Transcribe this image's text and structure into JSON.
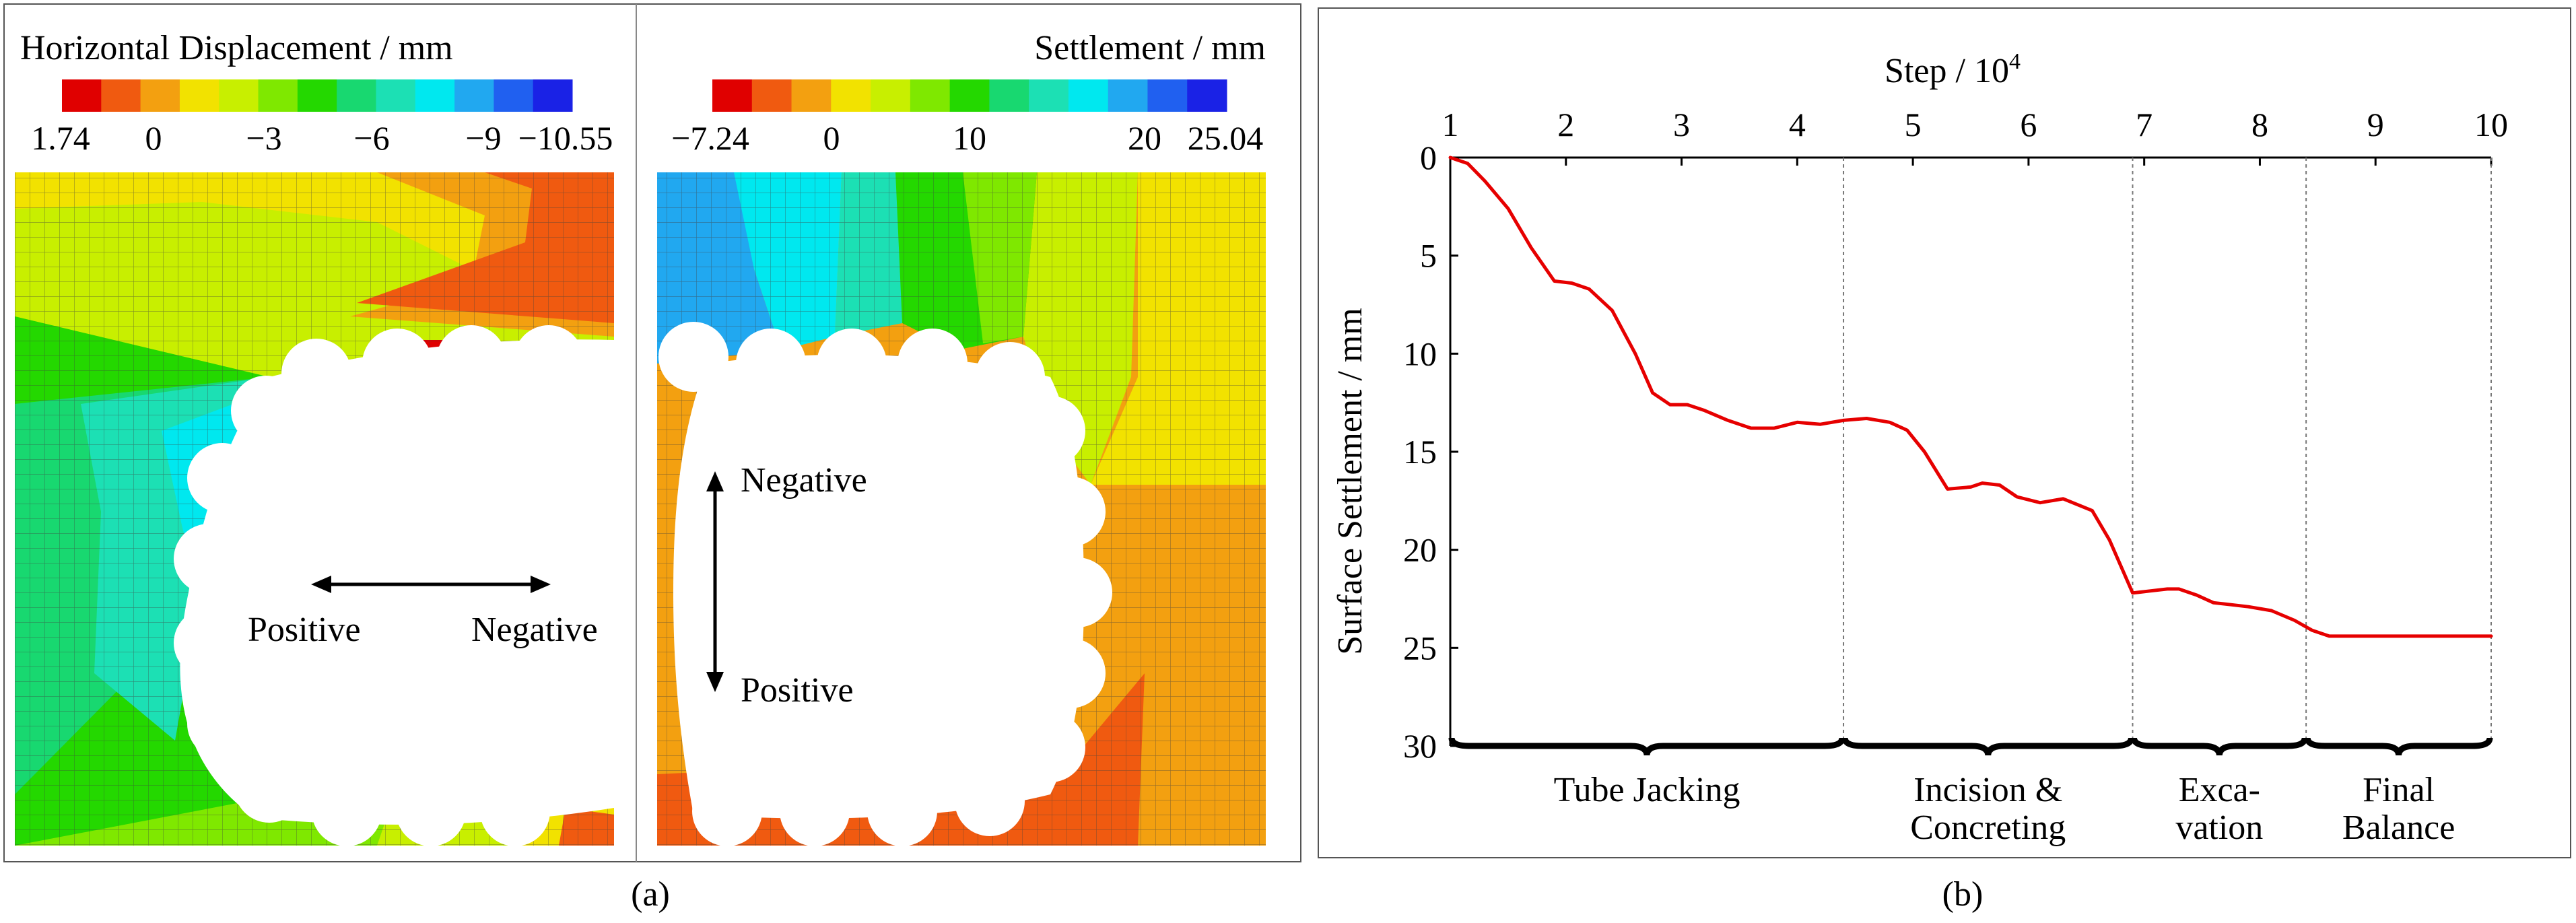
{
  "panel_a": {
    "label": "(a)",
    "left_plot": {
      "title": "Horizontal Displacement / mm",
      "colorbar_colors": [
        "#e00000",
        "#f05a10",
        "#f3a010",
        "#f2e200",
        "#c8ef00",
        "#7fe800",
        "#24d800",
        "#18d870",
        "#1ce0b4",
        "#00e8ef",
        "#21a8f0",
        "#2060f0",
        "#1a22e6"
      ],
      "colorbar_ticks": [
        "1.74",
        "0",
        "−3",
        "−6",
        "−9",
        "−10.55"
      ],
      "dir_positive": "Positive",
      "dir_negative": "Negative"
    },
    "right_plot": {
      "title": "Settlement / mm",
      "colorbar_colors": [
        "#e00000",
        "#f05a10",
        "#f3a010",
        "#f2e200",
        "#c8ef00",
        "#7fe800",
        "#24d800",
        "#18d870",
        "#1ce0b4",
        "#00e8ef",
        "#21a8f0",
        "#2060f0",
        "#1a22e6"
      ],
      "colorbar_ticks": [
        "−7.24",
        "0",
        "10",
        "20",
        "25.04"
      ],
      "dir_negative": "Negative",
      "dir_positive": "Positive"
    }
  },
  "panel_b": {
    "label": "(b)",
    "chart_data": {
      "type": "line",
      "title": "",
      "xlabel": "Step / 10",
      "xlabel_superscript": "4",
      "ylabel": "Surface Settlement / mm",
      "xlim": [
        1,
        10
      ],
      "ylim": [
        0,
        30
      ],
      "y_inverted": true,
      "x_axis_position": "top",
      "xticks": [
        "1",
        "2",
        "3",
        "4",
        "5",
        "6",
        "7",
        "8",
        "9",
        "10"
      ],
      "yticks": [
        "0",
        "5",
        "10",
        "15",
        "20",
        "25",
        "30"
      ],
      "line_color": "#e60000",
      "series": [
        {
          "name": "Surface Settlement",
          "x": [
            1.0,
            1.15,
            1.3,
            1.5,
            1.7,
            1.9,
            2.05,
            2.2,
            2.4,
            2.6,
            2.75,
            2.9,
            3.05,
            3.2,
            3.4,
            3.6,
            3.8,
            4.0,
            4.2,
            4.4,
            4.6,
            4.8,
            4.95,
            5.1,
            5.3,
            5.5,
            5.6,
            5.75,
            5.9,
            6.1,
            6.3,
            6.55,
            6.7,
            6.9,
            7.05,
            7.2,
            7.3,
            7.45,
            7.6,
            7.75,
            7.9,
            8.1,
            8.3,
            8.45,
            8.6,
            8.8,
            9.0,
            9.2,
            9.4,
            9.6,
            9.8,
            10.0
          ],
          "y": [
            0,
            0.3,
            1.2,
            2.6,
            4.6,
            6.3,
            6.4,
            6.7,
            7.8,
            10.0,
            12.0,
            12.6,
            12.6,
            12.9,
            13.4,
            13.8,
            13.8,
            13.5,
            13.6,
            13.4,
            13.3,
            13.5,
            13.9,
            15.0,
            16.9,
            16.8,
            16.6,
            16.7,
            17.3,
            17.6,
            17.4,
            18.0,
            19.5,
            22.2,
            22.1,
            22.0,
            22.0,
            22.3,
            22.7,
            22.8,
            22.9,
            23.1,
            23.6,
            24.1,
            24.4,
            24.4,
            24.4,
            24.4,
            24.4,
            24.4,
            24.4,
            24.4
          ]
        }
      ],
      "phase_boundaries": [
        4.4,
        6.9,
        8.4
      ],
      "phases": [
        {
          "label_lines": [
            "Tube Jacking"
          ],
          "start": 1,
          "end": 4.4
        },
        {
          "label_lines": [
            "Incision &",
            "Concreting"
          ],
          "start": 4.4,
          "end": 6.9
        },
        {
          "label_lines": [
            "Exca-",
            "vation"
          ],
          "start": 6.9,
          "end": 8.4
        },
        {
          "label_lines": [
            "Final",
            "Balance"
          ],
          "start": 8.4,
          "end": 10
        }
      ]
    }
  }
}
